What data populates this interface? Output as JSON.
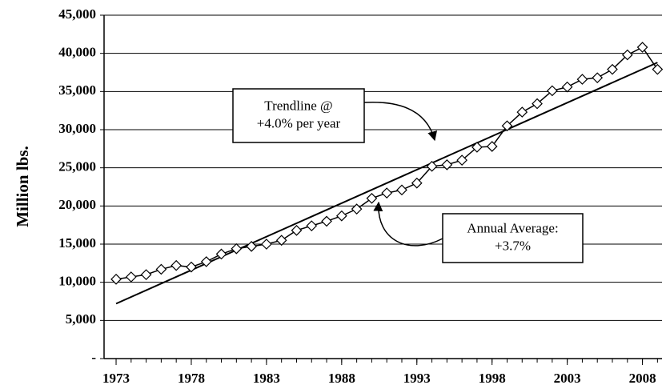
{
  "chart_data": {
    "type": "line",
    "y_label": "Million lbs.",
    "x": [
      1973,
      1974,
      1975,
      1976,
      1977,
      1978,
      1979,
      1980,
      1981,
      1982,
      1983,
      1984,
      1985,
      1986,
      1987,
      1988,
      1989,
      1990,
      1991,
      1992,
      1993,
      1994,
      1995,
      1996,
      1997,
      1998,
      1999,
      2000,
      2001,
      2002,
      2003,
      2004,
      2005,
      2006,
      2007,
      2008,
      2009
    ],
    "series": [
      {
        "color": "#000000",
        "marker": "diamond",
        "values": [
          10400,
          10700,
          11000,
          11700,
          12200,
          12000,
          12700,
          13700,
          14400,
          14700,
          15000,
          15500,
          16800,
          17400,
          18000,
          18700,
          19600,
          21000,
          21700,
          22100,
          23000,
          25200,
          25400,
          26000,
          27700,
          27800,
          30500,
          32300,
          33400,
          35100,
          35600,
          36600,
          36800,
          37900,
          39800,
          40800,
          37900
        ]
      }
    ],
    "trendline": {
      "color": "#000000",
      "x": [
        1973,
        2009
      ],
      "values": [
        7200,
        38800
      ]
    },
    "xlim": [
      1972.2,
      2009.3
    ],
    "xticks": [
      1973,
      1978,
      1983,
      1988,
      1993,
      1998,
      2003,
      2008
    ],
    "ylim": [
      0,
      45000
    ],
    "yticks": [
      {
        "value": 0,
        "label": "-"
      },
      {
        "value": 5000,
        "label": "5,000"
      },
      {
        "value": 10000,
        "label": "10,000"
      },
      {
        "value": 15000,
        "label": "15,000"
      },
      {
        "value": 20000,
        "label": "20,000"
      },
      {
        "value": 25000,
        "label": "25,000"
      },
      {
        "value": 30000,
        "label": "30,000"
      },
      {
        "value": 35000,
        "label": "35,000"
      },
      {
        "value": 40000,
        "label": "40,000"
      },
      {
        "value": 45000,
        "label": "45,000"
      }
    ],
    "grid": true,
    "annotations": [
      [
        "Trendline @",
        "+4.0% per year"
      ],
      [
        "Annual Average:",
        "+3.7%"
      ]
    ]
  }
}
